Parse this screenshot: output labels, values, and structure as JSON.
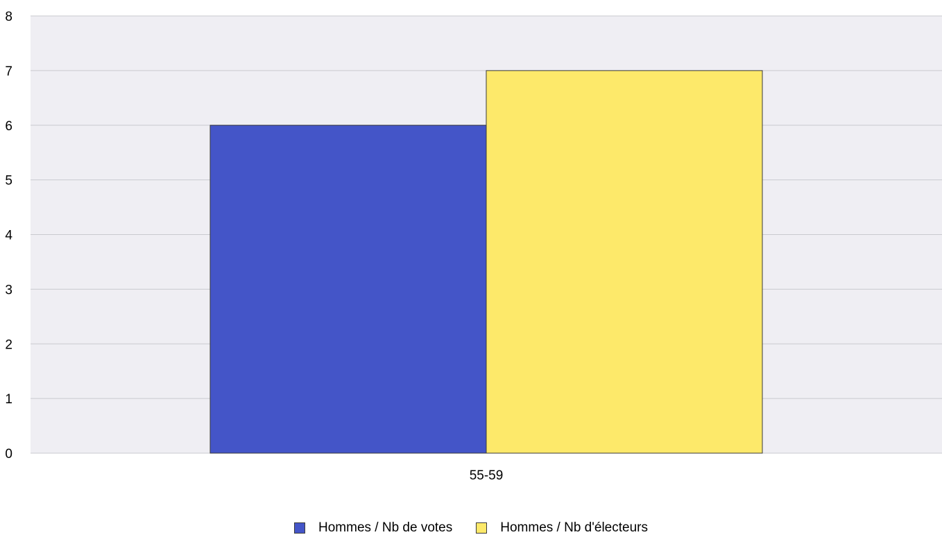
{
  "chart_data": {
    "type": "bar",
    "title": "",
    "categories": [
      "55-59"
    ],
    "series": [
      {
        "name": "Hommes / Nb de votes",
        "values": [
          6
        ],
        "color": "#4455c8"
      },
      {
        "name": "Hommes / Nb d'électeurs",
        "values": [
          7
        ],
        "color": "#fde96a"
      }
    ],
    "xlabel": "",
    "ylabel": "",
    "ylim": [
      0,
      8
    ],
    "yticks": [
      0,
      1,
      2,
      3,
      4,
      5,
      6,
      7,
      8
    ],
    "grid": true,
    "legend_position": "bottom",
    "plot_background": "#efeef3",
    "grid_color": "#c9c9cf"
  }
}
